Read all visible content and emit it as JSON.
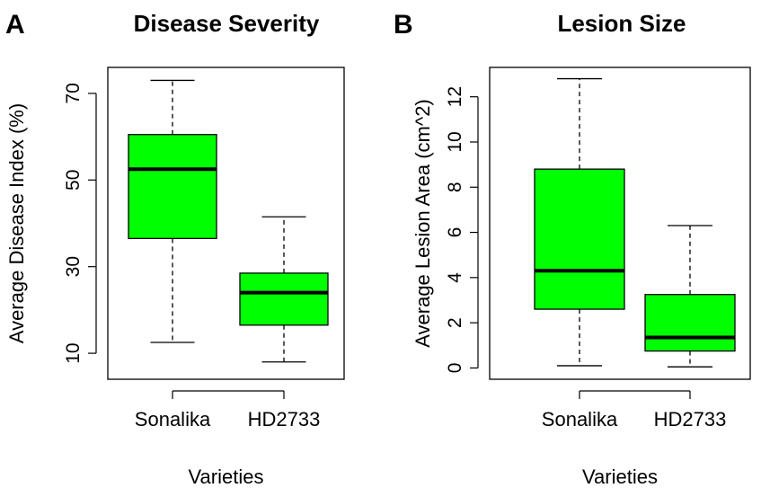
{
  "chart_data": [
    {
      "panel": "A",
      "type": "box",
      "title": "Disease Severity",
      "xlabel": "Varieties",
      "ylabel": "Average Disease Index (%)",
      "yticks": [
        10,
        30,
        50,
        70
      ],
      "ylim": [
        4,
        76
      ],
      "categories": [
        "Sonalika",
        "HD2733"
      ],
      "boxes": [
        {
          "category": "Sonalika",
          "min": 12.5,
          "q1": 36.5,
          "median": 52.5,
          "q3": 60.5,
          "max": 73
        },
        {
          "category": "HD2733",
          "min": 8,
          "q1": 16.5,
          "median": 24,
          "q3": 28.5,
          "max": 41.5
        }
      ],
      "fill_color": "#00ff00"
    },
    {
      "panel": "B",
      "type": "box",
      "title": "Lesion Size",
      "xlabel": "Varieties",
      "ylabel": "Average Lesion Area (cm^2)",
      "yticks": [
        0,
        2,
        4,
        6,
        8,
        10,
        12
      ],
      "ylim": [
        -0.5,
        13.3
      ],
      "categories": [
        "Sonalika",
        "HD2733"
      ],
      "boxes": [
        {
          "category": "Sonalika",
          "min": 0.1,
          "q1": 2.6,
          "median": 4.3,
          "q3": 8.8,
          "max": 12.8
        },
        {
          "category": "HD2733",
          "min": 0.05,
          "q1": 0.75,
          "median": 1.35,
          "q3": 3.25,
          "max": 6.3
        }
      ],
      "fill_color": "#00ff00"
    }
  ]
}
